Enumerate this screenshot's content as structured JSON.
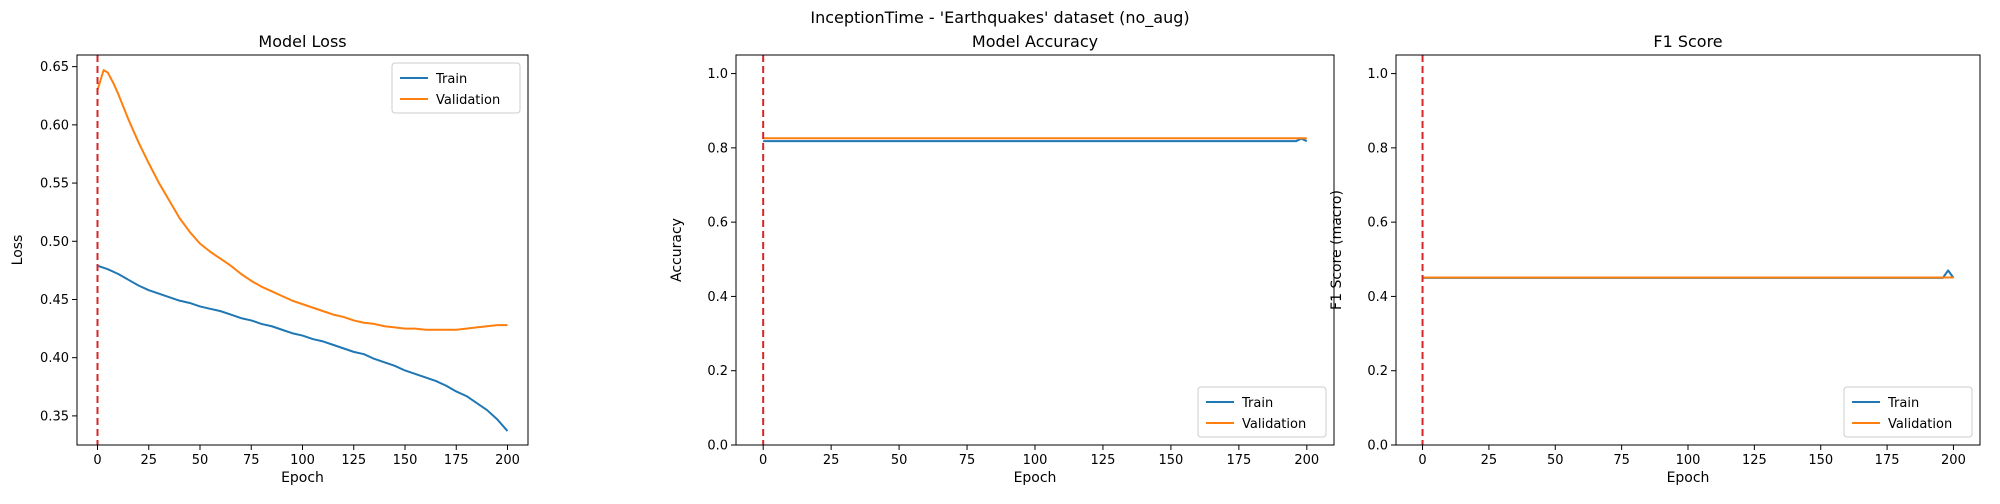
{
  "figure": {
    "title": "InceptionTime - 'Earthquakes' dataset (no_aug)",
    "colors": {
      "train": "#1f77b4",
      "validation": "#ff7f0e",
      "marker": "#d62728"
    }
  },
  "chart_data": [
    {
      "type": "line",
      "title": "Model Loss",
      "xlabel": "Epoch",
      "ylabel": "Loss",
      "xlim": [
        -10,
        210
      ],
      "ylim": [
        0.325,
        0.66
      ],
      "xticks": [
        0,
        25,
        50,
        75,
        100,
        125,
        150,
        175,
        200
      ],
      "yticks": [
        0.35,
        0.4,
        0.45,
        0.5,
        0.55,
        0.6,
        0.65
      ],
      "vline_x": 0,
      "legend_position": "upper right",
      "series": [
        {
          "name": "Train",
          "color": "#1f77b4",
          "x": [
            0,
            5,
            10,
            15,
            20,
            25,
            30,
            35,
            40,
            45,
            50,
            55,
            60,
            65,
            70,
            75,
            80,
            85,
            90,
            95,
            100,
            105,
            110,
            115,
            120,
            125,
            130,
            135,
            140,
            145,
            150,
            155,
            160,
            165,
            170,
            175,
            180,
            185,
            190,
            195,
            200
          ],
          "y": [
            0.479,
            0.476,
            0.472,
            0.467,
            0.462,
            0.458,
            0.455,
            0.452,
            0.449,
            0.447,
            0.444,
            0.442,
            0.44,
            0.437,
            0.434,
            0.432,
            0.429,
            0.427,
            0.424,
            0.421,
            0.419,
            0.416,
            0.414,
            0.411,
            0.408,
            0.405,
            0.403,
            0.399,
            0.396,
            0.393,
            0.389,
            0.386,
            0.383,
            0.38,
            0.376,
            0.371,
            0.367,
            0.361,
            0.355,
            0.347,
            0.337
          ]
        },
        {
          "name": "Validation",
          "color": "#ff7f0e",
          "x": [
            0,
            3,
            5,
            8,
            10,
            15,
            20,
            25,
            30,
            35,
            40,
            45,
            50,
            55,
            60,
            65,
            70,
            75,
            80,
            85,
            90,
            95,
            100,
            105,
            110,
            115,
            120,
            125,
            130,
            135,
            140,
            145,
            150,
            155,
            160,
            165,
            170,
            175,
            180,
            185,
            190,
            195,
            200
          ],
          "y": [
            0.63,
            0.647,
            0.645,
            0.635,
            0.627,
            0.605,
            0.585,
            0.567,
            0.55,
            0.535,
            0.52,
            0.508,
            0.498,
            0.491,
            0.485,
            0.479,
            0.472,
            0.466,
            0.461,
            0.457,
            0.453,
            0.449,
            0.446,
            0.443,
            0.44,
            0.437,
            0.435,
            0.432,
            0.43,
            0.429,
            0.427,
            0.426,
            0.425,
            0.425,
            0.424,
            0.424,
            0.424,
            0.424,
            0.425,
            0.426,
            0.427,
            0.428,
            0.428
          ]
        }
      ]
    },
    {
      "type": "line",
      "title": "Model Accuracy",
      "xlabel": "Epoch",
      "ylabel": "Accuracy",
      "xlim": [
        -10,
        210
      ],
      "ylim": [
        0.0,
        1.05
      ],
      "xticks": [
        0,
        25,
        50,
        75,
        100,
        125,
        150,
        175,
        200
      ],
      "yticks": [
        0.0,
        0.2,
        0.4,
        0.6,
        0.8,
        1.0
      ],
      "vline_x": 0,
      "legend_position": "lower right",
      "series": [
        {
          "name": "Train",
          "color": "#1f77b4",
          "x": [
            0,
            196,
            198,
            200
          ],
          "y": [
            0.818,
            0.818,
            0.825,
            0.818
          ]
        },
        {
          "name": "Validation",
          "color": "#ff7f0e",
          "x": [
            0,
            200
          ],
          "y": [
            0.826,
            0.826
          ]
        }
      ]
    },
    {
      "type": "line",
      "title": "F1 Score",
      "xlabel": "Epoch",
      "ylabel": "F1 Score (macro)",
      "xlim": [
        -10,
        210
      ],
      "ylim": [
        0.0,
        1.05
      ],
      "xticks": [
        0,
        25,
        50,
        75,
        100,
        125,
        150,
        175,
        200
      ],
      "yticks": [
        0.0,
        0.2,
        0.4,
        0.6,
        0.8,
        1.0
      ],
      "vline_x": 0,
      "legend_position": "lower right",
      "series": [
        {
          "name": "Train",
          "color": "#1f77b4",
          "x": [
            0,
            196,
            198,
            200
          ],
          "y": [
            0.45,
            0.45,
            0.47,
            0.45
          ]
        },
        {
          "name": "Validation",
          "color": "#ff7f0e",
          "x": [
            0,
            200
          ],
          "y": [
            0.451,
            0.451
          ]
        }
      ]
    }
  ]
}
